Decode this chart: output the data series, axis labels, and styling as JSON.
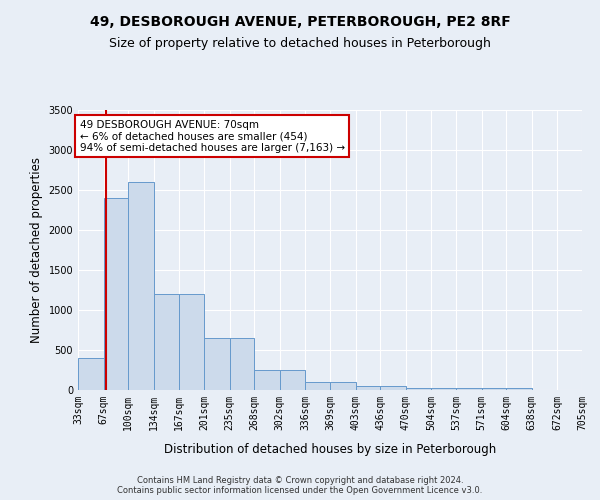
{
  "title": "49, DESBOROUGH AVENUE, PETERBOROUGH, PE2 8RF",
  "subtitle": "Size of property relative to detached houses in Peterborough",
  "xlabel": "Distribution of detached houses by size in Peterborough",
  "ylabel": "Number of detached properties",
  "footer_line1": "Contains HM Land Registry data © Crown copyright and database right 2024.",
  "footer_line2": "Contains public sector information licensed under the Open Government Licence v3.0.",
  "bin_edges": [
    33,
    67,
    100,
    134,
    167,
    201,
    235,
    268,
    302,
    336,
    369,
    403,
    436,
    470,
    504,
    537,
    571,
    604,
    638,
    672,
    705
  ],
  "bar_heights": [
    400,
    2400,
    2600,
    1200,
    1200,
    650,
    650,
    250,
    250,
    100,
    100,
    50,
    50,
    30,
    30,
    20,
    20,
    30,
    0,
    0
  ],
  "bar_color": "#ccdaeb",
  "bar_edge_color": "#6699cc",
  "property_size": 70,
  "property_line_color": "#cc0000",
  "annotation_text_line1": "49 DESBOROUGH AVENUE: 70sqm",
  "annotation_text_line2": "← 6% of detached houses are smaller (454)",
  "annotation_text_line3": "94% of semi-detached houses are larger (7,163) →",
  "annotation_box_color": "#ffffff",
  "annotation_border_color": "#cc0000",
  "ylim": [
    0,
    3500
  ],
  "yticks": [
    0,
    500,
    1000,
    1500,
    2000,
    2500,
    3000,
    3500
  ],
  "bg_color": "#e8eef6",
  "grid_color": "#ffffff",
  "title_fontsize": 10,
  "subtitle_fontsize": 9,
  "axis_label_fontsize": 8.5,
  "tick_fontsize": 7,
  "annotation_fontsize": 7.5,
  "footer_fontsize": 6
}
